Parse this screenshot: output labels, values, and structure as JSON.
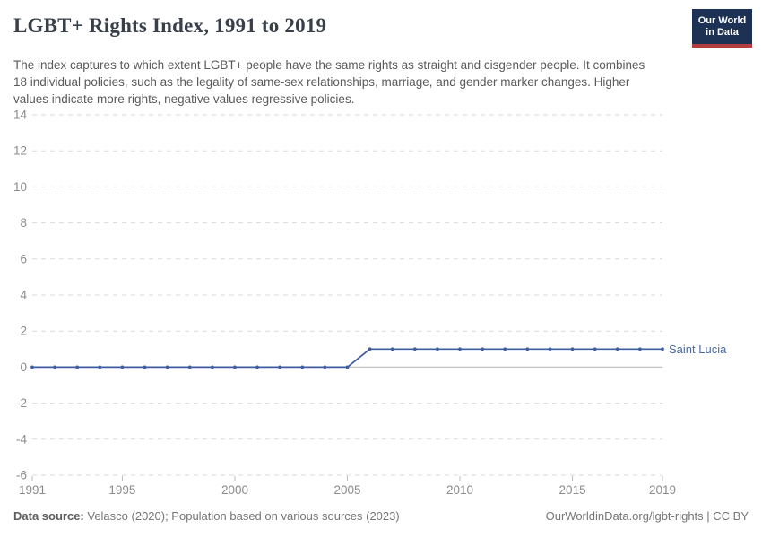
{
  "header": {
    "title": "LGBT+ Rights Index, 1991 to 2019",
    "subtitle": "The index captures to which extent LGBT+ people have the same rights as straight and cisgender people. It combines 18 individual policies, such as the legality of same-sex relationships, marriage, and gender marker changes. Higher values indicate more rights, negative values regressive policies.",
    "logo": {
      "line1": "Our World",
      "line2": "in Data",
      "bg_color": "#1c3154",
      "accent_color": "#b43d3d"
    }
  },
  "chart_data": {
    "type": "line",
    "title": "LGBT+ Rights Index, 1991 to 2019",
    "xlabel": "",
    "ylabel": "",
    "x": [
      1991,
      1992,
      1993,
      1994,
      1995,
      1996,
      1997,
      1998,
      1999,
      2000,
      2001,
      2002,
      2003,
      2004,
      2005,
      2006,
      2007,
      2008,
      2009,
      2010,
      2011,
      2012,
      2013,
      2014,
      2015,
      2016,
      2017,
      2018,
      2019
    ],
    "series": [
      {
        "name": "Saint Lucia",
        "color": "#3d5e9e",
        "label_color": "#4a6ba5",
        "values": [
          0,
          0,
          0,
          0,
          0,
          0,
          0,
          0,
          0,
          0,
          0,
          0,
          0,
          0,
          0,
          1,
          1,
          1,
          1,
          1,
          1,
          1,
          1,
          1,
          1,
          1,
          1,
          1,
          1
        ]
      }
    ],
    "xlim": [
      1991,
      2019
    ],
    "ylim": [
      -6,
      14
    ],
    "y_ticks": [
      -6,
      -4,
      -2,
      0,
      2,
      4,
      6,
      8,
      10,
      12,
      14
    ],
    "x_ticks": [
      1991,
      1995,
      2000,
      2005,
      2010,
      2015,
      2019
    ],
    "grid": "horizontal-dashed",
    "gridline_color": "#dadada",
    "zero_line_color": "#c3c3c3",
    "axis_label_color": "#8b8b8b",
    "legend": "series-end-label"
  },
  "footer": {
    "source_label": "Data source:",
    "source_text": " Velasco (2020); Population based on various sources (2023)",
    "link": "OurWorldinData.org/lgbt-rights | CC BY"
  }
}
